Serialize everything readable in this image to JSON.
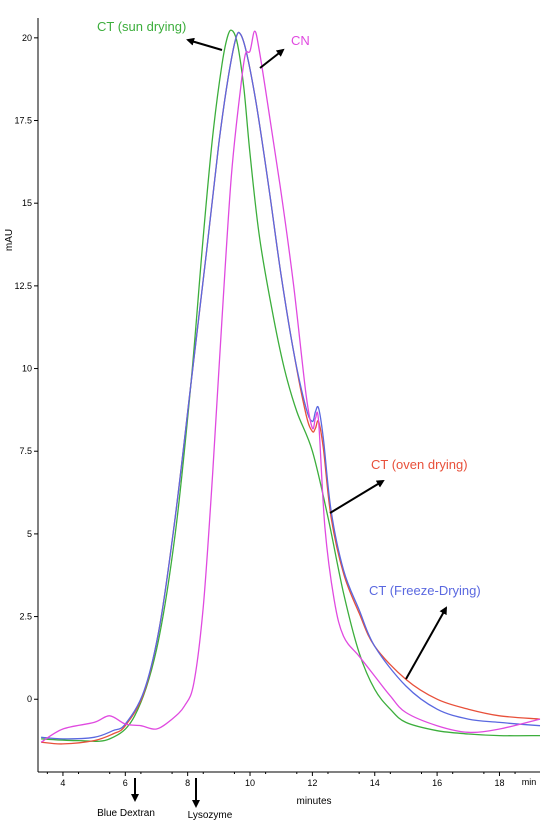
{
  "chart_data": {
    "type": "line",
    "title": "",
    "xlabel": "minutes",
    "ylabel": "mAU",
    "x_unit_label": "min",
    "xlim": [
      3.2,
      19.3
    ],
    "ylim": [
      -2.2,
      20.6
    ],
    "x_ticks": [
      4,
      6,
      8,
      10,
      12,
      14,
      16,
      18
    ],
    "y_ticks": [
      0,
      2.5,
      5,
      7.5,
      10,
      12.5,
      15,
      17.5,
      20
    ],
    "grid": false,
    "legend": "none",
    "series": [
      {
        "name": "CT (sun drying)",
        "color": "#3cae3c",
        "x": [
          3.3,
          4.5,
          5.5,
          6.3,
          7.0,
          7.6,
          8.1,
          8.5,
          8.8,
          9.1,
          9.3,
          9.45,
          9.6,
          9.8,
          10.0,
          10.3,
          10.7,
          11.1,
          11.5,
          12.0,
          12.5,
          13.0,
          13.5,
          14.0,
          14.5,
          15.0,
          16.0,
          17.0,
          18.0,
          19.3
        ],
        "y": [
          -1.2,
          -1.25,
          -1.2,
          -0.5,
          1.5,
          5.0,
          9.5,
          14.0,
          17.0,
          19.2,
          20.1,
          20.2,
          19.8,
          18.5,
          16.5,
          14.0,
          11.8,
          10.0,
          8.7,
          7.5,
          5.5,
          3.2,
          1.4,
          0.3,
          -0.3,
          -0.7,
          -0.95,
          -1.05,
          -1.1,
          -1.1
        ]
      },
      {
        "name": "CT (oven drying)",
        "color": "#e8503a",
        "x": [
          3.3,
          4.0,
          5.0,
          5.6,
          6.0,
          6.6,
          7.1,
          7.6,
          8.1,
          8.6,
          9.0,
          9.3,
          9.55,
          9.7,
          9.9,
          10.2,
          10.6,
          11.0,
          11.4,
          11.8,
          12.0,
          12.1,
          12.2,
          12.35,
          12.6,
          13.0,
          13.5,
          14.0,
          15.0,
          16.0,
          17.0,
          18.0,
          19.3
        ],
        "y": [
          -1.3,
          -1.35,
          -1.25,
          -1.05,
          -0.8,
          0.2,
          2.2,
          5.5,
          9.5,
          13.5,
          16.8,
          18.8,
          20.0,
          20.1,
          19.5,
          18.0,
          15.5,
          12.8,
          10.5,
          8.6,
          8.1,
          8.2,
          8.4,
          7.6,
          5.5,
          3.8,
          2.6,
          1.6,
          0.6,
          0.0,
          -0.3,
          -0.5,
          -0.6
        ]
      },
      {
        "name": "CT (Freeze-Drying)",
        "color": "#5a68e0",
        "x": [
          3.3,
          4.0,
          5.0,
          5.6,
          6.0,
          6.6,
          7.1,
          7.6,
          8.1,
          8.6,
          9.0,
          9.3,
          9.55,
          9.7,
          9.9,
          10.2,
          10.6,
          11.0,
          11.4,
          11.8,
          12.0,
          12.1,
          12.2,
          12.35,
          12.6,
          13.0,
          13.5,
          14.0,
          15.0,
          16.0,
          17.0,
          18.0,
          19.3
        ],
        "y": [
          -1.15,
          -1.2,
          -1.15,
          -0.95,
          -0.75,
          0.25,
          2.2,
          5.5,
          9.5,
          13.5,
          16.8,
          18.8,
          20.0,
          20.1,
          19.5,
          18.0,
          15.5,
          12.8,
          10.5,
          8.8,
          8.4,
          8.7,
          8.8,
          7.9,
          5.7,
          3.9,
          2.7,
          1.6,
          0.4,
          -0.3,
          -0.6,
          -0.7,
          -0.8
        ]
      },
      {
        "name": "CN",
        "color": "#e04ae0",
        "x": [
          3.3,
          4.0,
          5.0,
          5.5,
          6.0,
          6.5,
          7.0,
          7.5,
          7.9,
          8.2,
          8.5,
          8.8,
          9.1,
          9.4,
          9.7,
          9.85,
          10.0,
          10.15,
          10.3,
          10.6,
          11.0,
          11.4,
          11.8,
          12.0,
          12.1,
          12.2,
          12.4,
          12.7,
          13.0,
          13.5,
          14.0,
          14.5,
          15.0,
          16.0,
          17.0,
          18.0,
          19.3
        ],
        "y": [
          -1.3,
          -0.9,
          -0.7,
          -0.5,
          -0.75,
          -0.8,
          -0.9,
          -0.6,
          -0.2,
          0.5,
          2.8,
          6.8,
          11.5,
          15.8,
          18.5,
          19.5,
          19.6,
          20.2,
          19.6,
          17.8,
          15.3,
          12.5,
          9.2,
          8.2,
          8.5,
          8.4,
          5.2,
          3.0,
          1.9,
          1.3,
          0.7,
          0.1,
          -0.4,
          -0.8,
          -1.0,
          -0.9,
          -0.6
        ]
      }
    ],
    "annotations": [
      {
        "text": "CT (sun drying)",
        "color": "#3cae3c"
      },
      {
        "text": "CN",
        "color": "#e04ae0"
      },
      {
        "text": "CT (oven drying)",
        "color": "#e8503a"
      },
      {
        "text": "CT (Freeze-Drying)",
        "color": "#5a68e0"
      }
    ],
    "markers": [
      {
        "text": "Blue Dextran",
        "x": 6.3
      },
      {
        "text": "Lysozyme",
        "x": 8.35
      }
    ]
  }
}
